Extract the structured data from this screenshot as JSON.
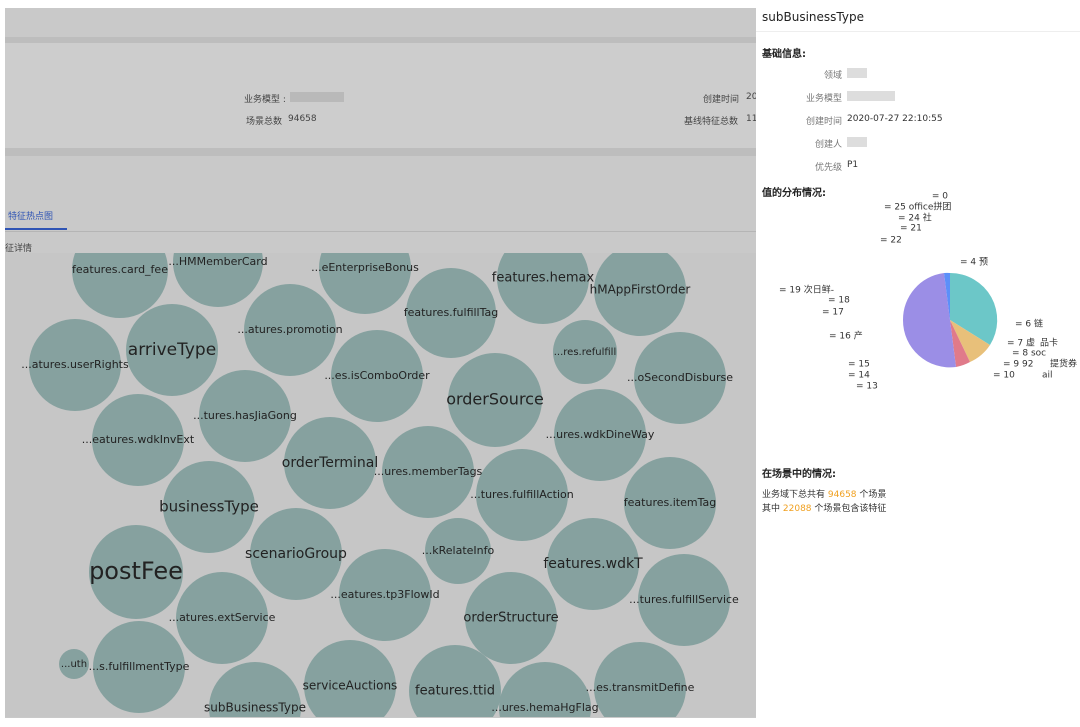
{
  "summary": {
    "business_model_label": "业务模型 :",
    "scene_total_label": "场景总数",
    "scene_total_value": "94658",
    "created_label": "创建时间",
    "created_value": "20",
    "baseline_label": "基线特征总数",
    "baseline_value": "11"
  },
  "tab": "特征热点图",
  "section": "征详情",
  "bubbles": [
    "features.card_fee",
    "...HMMemberCard",
    "...eEnterpriseBonus",
    "features.hemax",
    "hMAppFirstOrder",
    "features.fulfillTag",
    "...atures.promotion",
    "arriveType",
    "...atures.userRights",
    "...res.refulfill",
    "...es.isComboOrder",
    "...oSecondDisburse",
    "orderSource",
    "...tures.hasJiaGong",
    "...eatures.wdkInvExt",
    "...ures.wdkDineWay",
    "orderTerminal",
    "...ures.memberTags",
    "...tures.fulfillAction",
    "features.itemTag",
    "businessType",
    "scenarioGroup",
    "...kRelateInfo",
    "features.wdkT",
    "postFee",
    "...eatures.tp3FlowId",
    "...atures.extService",
    "orderStructure",
    "...tures.fulfillService",
    "...uth",
    "...s.fulfillmentType",
    "serviceAuctions",
    "features.ttid",
    "...es.transmitDefine",
    "subBusinessType",
    "...ures.hemaHgFlag"
  ],
  "panel": {
    "title": "subBusinessType",
    "basic_heading": "基础信息:",
    "fields": [
      {
        "label": "领域"
      },
      {
        "label": "业务模型"
      },
      {
        "label": "创建时间",
        "value": "2020-07-27 22:10:55"
      },
      {
        "label": "创建人"
      },
      {
        "label": "优先级",
        "value": "P1"
      }
    ],
    "distribution_heading": "值的分布情况:",
    "pie_labels": [
      "= 0",
      "= 25 office拼团",
      "= 24 社",
      "= 21",
      "= 22",
      "= 4 预",
      "= 19 次日鲜-",
      "= 18",
      "= 17",
      "= 16 产",
      "= 6 链",
      "= 7 虚",
      "品卡",
      "= 8 soc",
      "= 9 92",
      "提货券",
      "= 10",
      "ail",
      "= 15",
      "= 14",
      "= 13"
    ],
    "scene_heading": "在场景中的情况:",
    "scene_line1": [
      "业务域下总共有",
      "94658",
      "个场景"
    ],
    "scene_line2": [
      "其中",
      "22088",
      "个场景包含该特征"
    ]
  }
}
